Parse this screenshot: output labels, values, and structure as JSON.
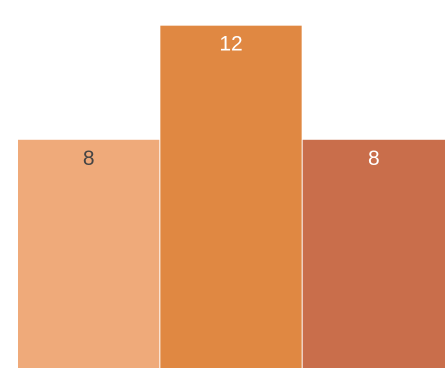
{
  "chart_data": {
    "type": "bar",
    "categories": [
      "",
      "",
      ""
    ],
    "values": [
      8,
      12,
      8
    ],
    "data_labels": [
      "8",
      "12",
      "8"
    ],
    "colors": [
      "#efaa7a",
      "#e08842",
      "#c96e4b"
    ],
    "label_colors": [
      "#444444",
      "#ffffff",
      "#ffffff"
    ],
    "ylim": [
      0,
      12.9
    ],
    "grid": false,
    "legend": "none",
    "title": "",
    "xlabel": "",
    "ylabel": ""
  }
}
